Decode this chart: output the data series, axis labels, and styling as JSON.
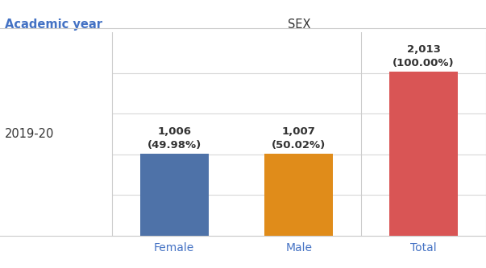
{
  "categories": [
    "Female",
    "Male",
    "Total"
  ],
  "values": [
    1006,
    1007,
    2013
  ],
  "labels_top": [
    "1,006",
    "1,007",
    "2,013"
  ],
  "labels_pct": [
    "(49.98%)",
    "(50.02%)",
    "(100.00%)"
  ],
  "bar_colors": [
    "#4e72a8",
    "#e08c1a",
    "#d95555"
  ],
  "col_header": "SEX",
  "row_header": "Academic year",
  "row_label": "2019-20",
  "ylim": [
    0,
    2500
  ],
  "yticks": [
    500,
    1000,
    1500,
    2000
  ],
  "grid_color": "#d8d8d8",
  "label_fontsize": 9.5,
  "header_fontsize": 10.5,
  "tick_fontsize": 10,
  "row_label_fontsize": 10.5,
  "header_color": "#4472c4",
  "tick_color": "#4472c4",
  "row_label_color": "#333333",
  "text_color": "#333333",
  "line_color": "#cccccc",
  "label_color": "#333333"
}
